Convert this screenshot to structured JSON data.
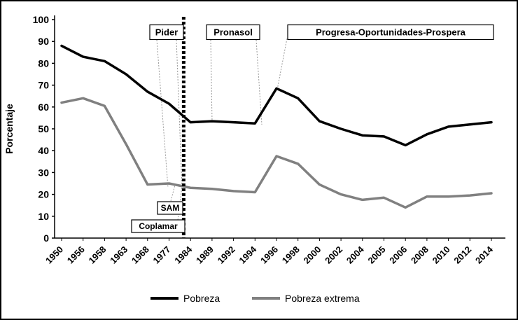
{
  "chart_data": {
    "type": "line",
    "title": "",
    "xlabel": "",
    "ylabel": "Porcentaje",
    "ylim": [
      0,
      100
    ],
    "ytick_step": 10,
    "grid": false,
    "legend_position": "bottom",
    "categories": [
      "1950",
      "1956",
      "1958",
      "1963",
      "1968",
      "1977",
      "1984",
      "1989",
      "1992",
      "1994",
      "1996",
      "1998",
      "2000",
      "2002",
      "2004",
      "2005",
      "2006",
      "2008",
      "2010",
      "2012",
      "2014"
    ],
    "series": [
      {
        "name": "Pobreza",
        "color": "#000000",
        "values": [
          88,
          83,
          81,
          75,
          67,
          61.5,
          53,
          53.5,
          53,
          52.5,
          68.5,
          64,
          53.5,
          50,
          47,
          46.5,
          42.5,
          47.5,
          51,
          52,
          53
        ]
      },
      {
        "name": "Pobreza extrema",
        "color": "#808080",
        "values": [
          62,
          64,
          60.5,
          43,
          24.5,
          25,
          23,
          22.5,
          21.5,
          21,
          37.5,
          34,
          24.5,
          20,
          17.5,
          18.5,
          14,
          19,
          19,
          19.5,
          20.5
        ]
      }
    ],
    "annotations": [
      {
        "label": "Pider"
      },
      {
        "label": "Pronasol"
      },
      {
        "label": "Progresa-Oportunidades-Prospera"
      },
      {
        "label": "SAM"
      },
      {
        "label": "Coplamar"
      }
    ],
    "vline_between": [
      "1977",
      "1984"
    ]
  }
}
